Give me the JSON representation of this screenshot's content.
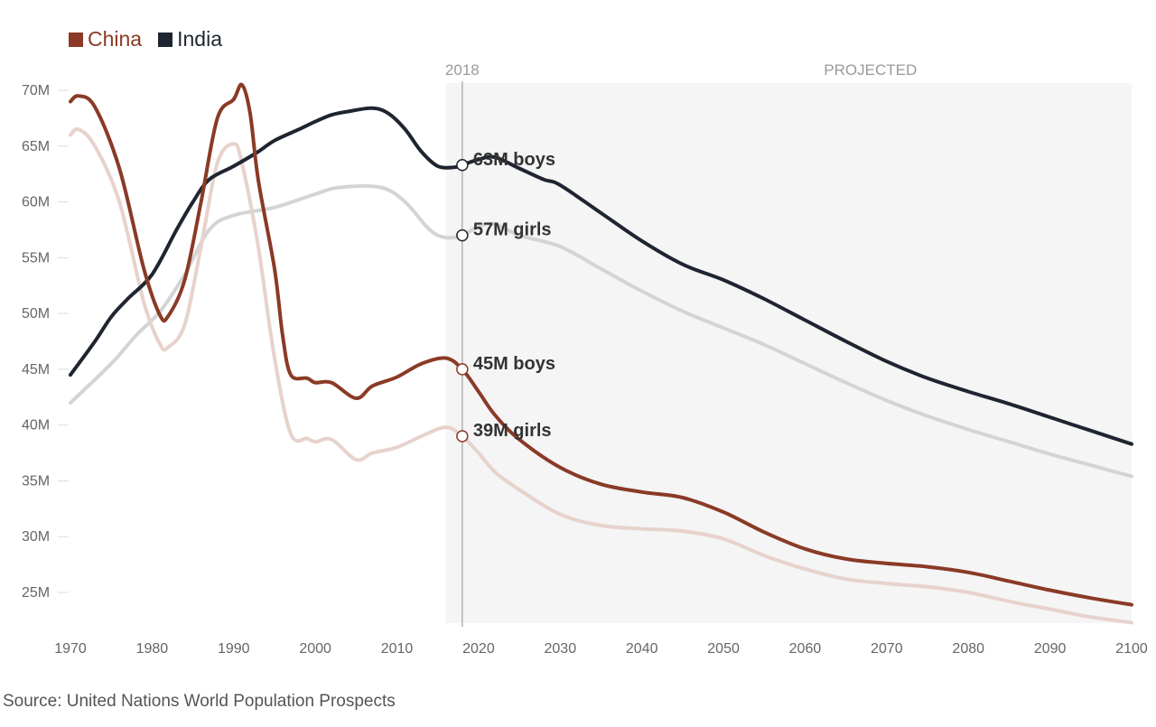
{
  "legend": [
    {
      "label": "China",
      "color": "#8a3a26"
    },
    {
      "label": "India",
      "color": "#1f2530"
    }
  ],
  "source": "Source: United Nations World Population Prospects",
  "chart_data": {
    "type": "line",
    "title": "",
    "xlabel": "",
    "ylabel": "",
    "xlim": [
      1970,
      2100
    ],
    "ylim": [
      22,
      72
    ],
    "x_ticks": [
      "1970",
      "1980",
      "1990",
      "2000",
      "2010",
      "2020",
      "2030",
      "2040",
      "2050",
      "2060",
      "2070",
      "2080",
      "2090",
      "2100"
    ],
    "y_ticks": [
      "25M",
      "30M",
      "35M",
      "40M",
      "45M",
      "50M",
      "55M",
      "60M",
      "65M",
      "70M"
    ],
    "marker_year": "2018",
    "projected_label": "PROJECTED",
    "projected_start": 2016,
    "series": [
      {
        "name": "India girls",
        "country": "India",
        "sex": "girls",
        "color": "#d4d4d4",
        "width": 4,
        "x": [
          1970,
          1975,
          1978,
          1981,
          1984,
          1987,
          1990,
          1995,
          2000,
          2003,
          2008,
          2011,
          2014,
          2016,
          2018,
          2020,
          2022,
          2025,
          2030,
          2035,
          2040,
          2045,
          2050,
          2055,
          2060,
          2065,
          2070,
          2075,
          2080,
          2085,
          2090,
          2095,
          2100
        ],
        "y": [
          42,
          45.5,
          48,
          50.2,
          53.5,
          57.5,
          58.8,
          59.5,
          60.7,
          61.3,
          61.3,
          60,
          57.5,
          56.8,
          57,
          57.8,
          58,
          57,
          56,
          54,
          52,
          50.2,
          48.7,
          47.2,
          45.5,
          43.8,
          42.2,
          40.8,
          39.6,
          38.5,
          37.4,
          36.4,
          35.4
        ]
      },
      {
        "name": "China girls",
        "country": "China",
        "sex": "girls",
        "color": "#e7d2cc",
        "width": 4,
        "x": [
          1970,
          1971,
          1973,
          1976,
          1979,
          1981,
          1982,
          1984,
          1986,
          1988,
          1990,
          1991,
          1993,
          1995,
          1997,
          1999,
          2000,
          2002,
          2005,
          2007,
          2010,
          2013,
          2016,
          2018,
          2020,
          2022,
          2025,
          2030,
          2035,
          2040,
          2045,
          2050,
          2055,
          2060,
          2065,
          2070,
          2075,
          2080,
          2085,
          2090,
          2095,
          2100
        ],
        "y": [
          66,
          66.5,
          65,
          60,
          51,
          47.2,
          47,
          49,
          56,
          63.5,
          65.2,
          63.5,
          56,
          46,
          39.2,
          38.8,
          38.5,
          38.7,
          36.9,
          37.5,
          38,
          39,
          39.8,
          39,
          37.5,
          35.8,
          34.2,
          32,
          31,
          30.7,
          30.5,
          29.8,
          28.3,
          27.1,
          26.2,
          25.8,
          25.5,
          25,
          24.2,
          23.5,
          22.8,
          22.3
        ]
      },
      {
        "name": "India boys",
        "country": "India",
        "sex": "boys",
        "color": "#1f2530",
        "width": 4,
        "x": [
          1970,
          1973,
          1975,
          1977,
          1980,
          1983,
          1985,
          1987,
          1990,
          1993,
          1995,
          1998,
          2000,
          2002,
          2004,
          2007,
          2009,
          2011,
          2013,
          2015,
          2017,
          2018,
          2020,
          2022,
          2025,
          2028,
          2030,
          2035,
          2040,
          2045,
          2050,
          2055,
          2060,
          2065,
          2070,
          2075,
          2080,
          2085,
          2090,
          2095,
          2100
        ],
        "y": [
          44.5,
          47.5,
          49.7,
          51.3,
          53.5,
          57.5,
          60,
          62,
          63.2,
          64.5,
          65.5,
          66.5,
          67.2,
          67.8,
          68.1,
          68.4,
          67.9,
          66.5,
          64.5,
          63.2,
          63.1,
          63.3,
          63.8,
          64,
          63,
          62,
          61.5,
          59,
          56.5,
          54.4,
          53,
          51.3,
          49.4,
          47.5,
          45.7,
          44.2,
          43,
          41.9,
          40.7,
          39.5,
          38.3
        ]
      },
      {
        "name": "China boys",
        "country": "China",
        "sex": "boys",
        "color": "#8a3a26",
        "width": 4,
        "x": [
          1970,
          1971,
          1973,
          1976,
          1979,
          1981,
          1982,
          1984,
          1986,
          1988,
          1990,
          1991,
          1992,
          1993,
          1995,
          1996,
          1997,
          1999,
          2000,
          2002,
          2005,
          2007,
          2010,
          2013,
          2016,
          2018,
          2020,
          2022,
          2025,
          2030,
          2035,
          2040,
          2045,
          2050,
          2055,
          2060,
          2065,
          2070,
          2075,
          2080,
          2085,
          2090,
          2095,
          2100
        ],
        "y": [
          69,
          69.5,
          68.5,
          63,
          54,
          49.8,
          49.8,
          53,
          60,
          67.5,
          69.2,
          70.5,
          68,
          62,
          54,
          48,
          44.5,
          44.2,
          43.8,
          43.8,
          42.4,
          43.5,
          44.3,
          45.5,
          46,
          45,
          43,
          40.9,
          38.7,
          36.2,
          34.7,
          34,
          33.5,
          32.2,
          30.4,
          28.9,
          28,
          27.6,
          27.3,
          26.8,
          26,
          25.2,
          24.5,
          23.9
        ]
      }
    ],
    "annotations": [
      {
        "text": "63M boys",
        "x": 2018,
        "y": 63.3
      },
      {
        "text": "57M girls",
        "x": 2018,
        "y": 57
      },
      {
        "text": "45M boys",
        "x": 2018,
        "y": 45
      },
      {
        "text": "39M girls",
        "x": 2018,
        "y": 39
      }
    ]
  }
}
